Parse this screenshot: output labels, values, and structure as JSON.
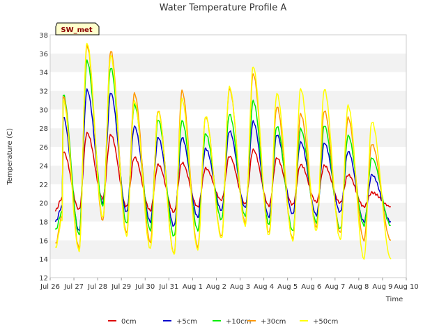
{
  "chart_data": {
    "type": "line",
    "title": "Water Temperature Profile A",
    "xlabel": "Time",
    "ylabel": "Temperature (C)",
    "badge": "SW_met",
    "ylim": [
      12,
      38
    ],
    "yticks": [
      12,
      14,
      16,
      18,
      20,
      22,
      24,
      26,
      28,
      30,
      32,
      34,
      36,
      38
    ],
    "xlim": [
      0,
      15
    ],
    "xticks": [
      {
        "x": 0,
        "label": "Jul 26"
      },
      {
        "x": 1,
        "label": "Jul 27"
      },
      {
        "x": 2,
        "label": "Jul 28"
      },
      {
        "x": 3,
        "label": "Jul 29"
      },
      {
        "x": 4,
        "label": "Jul 30"
      },
      {
        "x": 5,
        "label": "Jul 31"
      },
      {
        "x": 6,
        "label": "Aug 1"
      },
      {
        "x": 7,
        "label": "Aug 2"
      },
      {
        "x": 8,
        "label": "Aug 3"
      },
      {
        "x": 9,
        "label": "Aug 4"
      },
      {
        "x": 10,
        "label": "Aug 5"
      },
      {
        "x": 11,
        "label": "Aug 6"
      },
      {
        "x": 12,
        "label": "Aug 7"
      },
      {
        "x": 13,
        "label": "Aug 8"
      },
      {
        "x": 14,
        "label": "Aug 9"
      },
      {
        "x": 15,
        "label": "Aug 10"
      }
    ],
    "grid": "horizontal bands",
    "legend_position": "bottom",
    "x_start": 0.5,
    "x_end": 14.35,
    "peak_phase": 0.55,
    "series": [
      {
        "name": "0cm",
        "color": "#dd0000",
        "daily_max": [
          25.5,
          27.5,
          27.3,
          24.9,
          24.1,
          24.3,
          23.7,
          25.0,
          25.7,
          24.8,
          24.1,
          24.0,
          23.0,
          21.1
        ],
        "daily_min": [
          19.2,
          19.3,
          20.5,
          19.6,
          19.2,
          19.0,
          19.6,
          20.3,
          19.9,
          19.7,
          19.8,
          20.1,
          20.0,
          19.6
        ],
        "start": 20.5
      },
      {
        "name": "+5cm",
        "color": "#0000cc",
        "daily_max": [
          29.2,
          32.1,
          31.8,
          28.2,
          27.0,
          27.0,
          25.8,
          27.7,
          28.7,
          27.3,
          26.5,
          26.4,
          25.5,
          23.0
        ],
        "daily_min": [
          18.0,
          17.0,
          20.0,
          19.0,
          18.0,
          17.5,
          18.5,
          19.2,
          19.5,
          18.5,
          18.8,
          18.7,
          19.0,
          18.0
        ],
        "start": 19.6
      },
      {
        "name": "+10cm",
        "color": "#00ee00",
        "daily_max": [
          31.6,
          35.2,
          34.5,
          30.5,
          28.9,
          28.8,
          27.4,
          29.5,
          30.9,
          28.2,
          27.9,
          28.3,
          27.2,
          24.8
        ],
        "daily_min": [
          17.1,
          16.6,
          19.7,
          17.8,
          17.1,
          16.4,
          17.1,
          18.2,
          18.6,
          17.7,
          17.0,
          17.9,
          17.2,
          17.6
        ],
        "start": 19.0
      },
      {
        "name": "+30cm",
        "color": "#ff9900",
        "daily_max": [
          31.4,
          36.8,
          36.3,
          31.7,
          29.9,
          32.0,
          29.2,
          32.2,
          33.8,
          30.3,
          29.5,
          29.9,
          29.1,
          26.3
        ],
        "daily_min": [
          15.6,
          15.2,
          18.1,
          16.8,
          15.8,
          14.6,
          15.3,
          16.4,
          17.9,
          16.8,
          16.2,
          17.4,
          16.8,
          16.0
        ],
        "start": 18.5
      },
      {
        "name": "+50cm",
        "color": "#ffff00",
        "daily_max": [
          31.0,
          37.1,
          35.8,
          30.9,
          29.8,
          31.1,
          29.3,
          32.4,
          34.6,
          31.7,
          32.2,
          32.2,
          30.4,
          28.7
        ],
        "daily_min": [
          15.2,
          14.9,
          18.4,
          16.5,
          15.1,
          14.5,
          15.0,
          16.2,
          17.6,
          16.5,
          16.0,
          17.0,
          16.1,
          14.0
        ],
        "start": 18.2
      }
    ]
  }
}
